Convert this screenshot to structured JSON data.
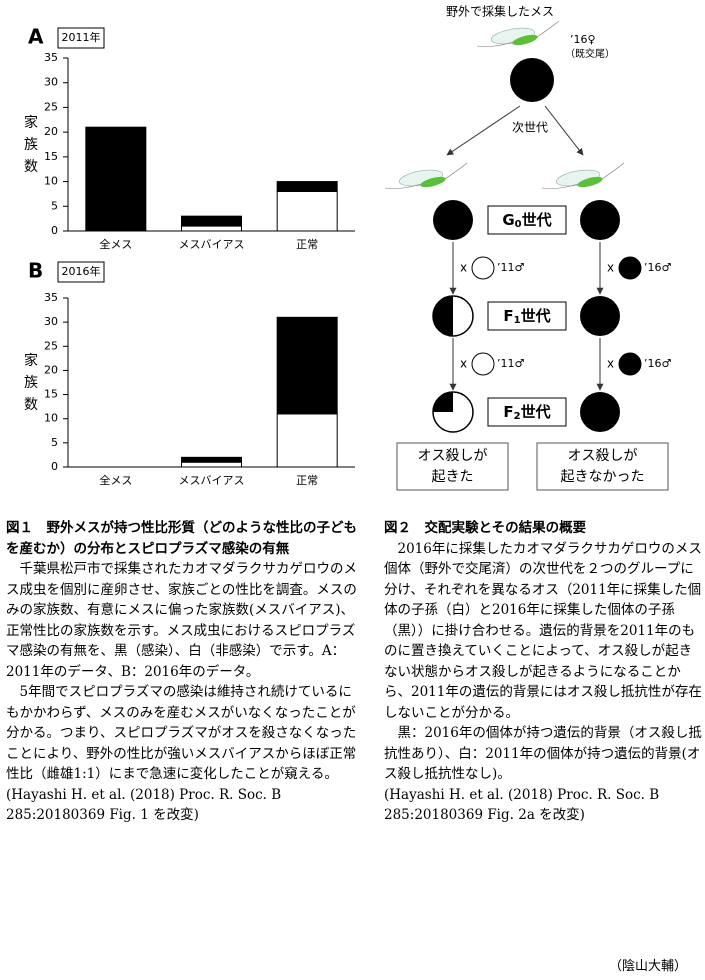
{
  "chart_data": [
    {
      "type": "bar",
      "stacked": true,
      "panel_label": "A",
      "year_label": "2011年",
      "ylabel": "家族数",
      "categories": [
        "全メス",
        "メスバイアス",
        "正常"
      ],
      "series": [
        {
          "color": "#ffffff",
          "values": [
            0,
            1,
            8
          ]
        },
        {
          "color": "#000000",
          "values": [
            21,
            2,
            2
          ]
        }
      ],
      "ylim": [
        0,
        35
      ],
      "yticks": [
        0,
        5,
        10,
        15,
        20,
        25,
        30,
        35
      ]
    },
    {
      "type": "bar",
      "stacked": true,
      "panel_label": "B",
      "year_label": "2016年",
      "ylabel": "家族数",
      "categories": [
        "全メス",
        "メスバイアス",
        "正常"
      ],
      "series": [
        {
          "color": "#ffffff",
          "values": [
            0,
            1,
            11
          ]
        },
        {
          "color": "#000000",
          "values": [
            0,
            1,
            20
          ]
        }
      ],
      "ylim": [
        0,
        35
      ],
      "yticks": [
        0,
        5,
        10,
        15,
        20,
        25,
        30,
        35
      ]
    }
  ],
  "diagram": {
    "wild_female": "野外で採集したメス",
    "female_year": "’16♀",
    "female_note": "（既交尾）",
    "next_gen": "次世代",
    "generations": [
      {
        "letter": "G",
        "sub": "0",
        "suffix": "世代"
      },
      {
        "letter": "F",
        "sub": "1",
        "suffix": "世代"
      },
      {
        "letter": "F",
        "sub": "2",
        "suffix": "世代"
      }
    ],
    "crosses": [
      {
        "x": "x",
        "male": "’11♂"
      },
      {
        "x": "x",
        "male": "’16♂"
      },
      {
        "x": "x",
        "male": "’11♂"
      },
      {
        "x": "x",
        "male": "’16♂"
      }
    ],
    "outcomes": [
      [
        "オス殺しが",
        "起きた"
      ],
      [
        "オス殺しが",
        "起きなかった"
      ]
    ]
  },
  "captions": [
    {
      "title": "図１　野外メスが持つ性比形質（どのような性比の子どもを産むか）の分布とスピロプラズマ感染の有無",
      "paragraphs": [
        "千葉県松戸市で採集されたカオマダラクサカゲロウのメス成虫を個別に産卵させ、家族ごとの性比を調査。メスのみの家族数、有意にメスに偏った家族数(メスバイアス)、正常性比の家族数を示す。メス成虫におけるスピロプラズマ感染の有無を、黒（感染）、白（非感染）で示す。A：2011年のデータ、B：2016年のデータ。",
        "5年間でスピロプラズマの感染は維持され続けているにもかかわらず、メスのみを産むメスがいなくなったことが分かる。つまり、スピロプラズマがオスを殺さなくなったことにより、野外の性比が強いメスバイアスからほぼ正常性比（雌雄1:1）にまで急速に変化したことが窺える。"
      ],
      "citation": "(Hayashi H. et al. (2018) Proc. R. Soc. B 285:20180369 Fig. 1 を改変)"
    },
    {
      "title": "図２　交配実験とその結果の概要",
      "paragraphs": [
        "2016年に採集したカオマダラクサカゲロウのメス個体（野外で交尾済）の次世代を２つのグループに分け、それぞれを異なるオス（2011年に採集した個体の子孫（白）と2016年に採集した個体の子孫（黒））に掛け合わせる。遺伝的背景を2011年のものに置き換えていくことによって、オス殺しが起きない状態からオス殺しが起きるようになることから、2011年の遺伝的背景にはオス殺し抵抗性が存在しないことが分かる。",
        "黒：2016年の個体が持つ遺伝的背景（オス殺し抵抗性あり）、白：2011年の個体が持つ遺伝的背景(オス殺し抵抗性なし)。"
      ],
      "citation": "(Hayashi H. et al. (2018) Proc. R. Soc. B 285:20180369 Fig. 2a を改変)"
    }
  ],
  "author": "（陰山大輔）"
}
